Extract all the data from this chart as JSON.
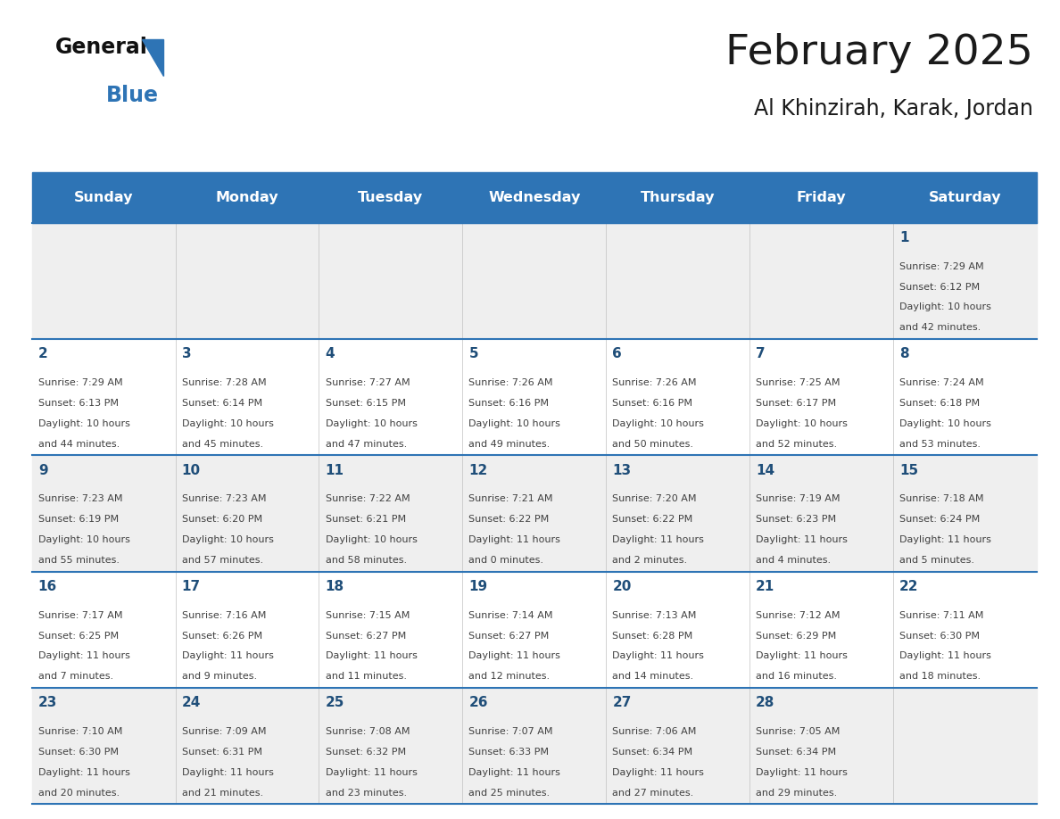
{
  "title": "February 2025",
  "subtitle": "Al Khinzirah, Karak, Jordan",
  "days_of_week": [
    "Sunday",
    "Monday",
    "Tuesday",
    "Wednesday",
    "Thursday",
    "Friday",
    "Saturday"
  ],
  "header_bg": "#2E74B5",
  "header_text": "#FFFFFF",
  "row_bg_odd": "#EFEFEF",
  "row_bg_even": "#FFFFFF",
  "separator_color": "#2E74B5",
  "day_num_color": "#1F4E79",
  "cell_text_color": "#404040",
  "calendar_data": [
    [
      null,
      null,
      null,
      null,
      null,
      null,
      {
        "day": "1",
        "sunrise": "7:29 AM",
        "sunset": "6:12 PM",
        "daylight_h": "10 hours",
        "daylight_m": "and 42 minutes."
      }
    ],
    [
      {
        "day": "2",
        "sunrise": "7:29 AM",
        "sunset": "6:13 PM",
        "daylight_h": "10 hours",
        "daylight_m": "and 44 minutes."
      },
      {
        "day": "3",
        "sunrise": "7:28 AM",
        "sunset": "6:14 PM",
        "daylight_h": "10 hours",
        "daylight_m": "and 45 minutes."
      },
      {
        "day": "4",
        "sunrise": "7:27 AM",
        "sunset": "6:15 PM",
        "daylight_h": "10 hours",
        "daylight_m": "and 47 minutes."
      },
      {
        "day": "5",
        "sunrise": "7:26 AM",
        "sunset": "6:16 PM",
        "daylight_h": "10 hours",
        "daylight_m": "and 49 minutes."
      },
      {
        "day": "6",
        "sunrise": "7:26 AM",
        "sunset": "6:16 PM",
        "daylight_h": "10 hours",
        "daylight_m": "and 50 minutes."
      },
      {
        "day": "7",
        "sunrise": "7:25 AM",
        "sunset": "6:17 PM",
        "daylight_h": "10 hours",
        "daylight_m": "and 52 minutes."
      },
      {
        "day": "8",
        "sunrise": "7:24 AM",
        "sunset": "6:18 PM",
        "daylight_h": "10 hours",
        "daylight_m": "and 53 minutes."
      }
    ],
    [
      {
        "day": "9",
        "sunrise": "7:23 AM",
        "sunset": "6:19 PM",
        "daylight_h": "10 hours",
        "daylight_m": "and 55 minutes."
      },
      {
        "day": "10",
        "sunrise": "7:23 AM",
        "sunset": "6:20 PM",
        "daylight_h": "10 hours",
        "daylight_m": "and 57 minutes."
      },
      {
        "day": "11",
        "sunrise": "7:22 AM",
        "sunset": "6:21 PM",
        "daylight_h": "10 hours",
        "daylight_m": "and 58 minutes."
      },
      {
        "day": "12",
        "sunrise": "7:21 AM",
        "sunset": "6:22 PM",
        "daylight_h": "11 hours",
        "daylight_m": "and 0 minutes."
      },
      {
        "day": "13",
        "sunrise": "7:20 AM",
        "sunset": "6:22 PM",
        "daylight_h": "11 hours",
        "daylight_m": "and 2 minutes."
      },
      {
        "day": "14",
        "sunrise": "7:19 AM",
        "sunset": "6:23 PM",
        "daylight_h": "11 hours",
        "daylight_m": "and 4 minutes."
      },
      {
        "day": "15",
        "sunrise": "7:18 AM",
        "sunset": "6:24 PM",
        "daylight_h": "11 hours",
        "daylight_m": "and 5 minutes."
      }
    ],
    [
      {
        "day": "16",
        "sunrise": "7:17 AM",
        "sunset": "6:25 PM",
        "daylight_h": "11 hours",
        "daylight_m": "and 7 minutes."
      },
      {
        "day": "17",
        "sunrise": "7:16 AM",
        "sunset": "6:26 PM",
        "daylight_h": "11 hours",
        "daylight_m": "and 9 minutes."
      },
      {
        "day": "18",
        "sunrise": "7:15 AM",
        "sunset": "6:27 PM",
        "daylight_h": "11 hours",
        "daylight_m": "and 11 minutes."
      },
      {
        "day": "19",
        "sunrise": "7:14 AM",
        "sunset": "6:27 PM",
        "daylight_h": "11 hours",
        "daylight_m": "and 12 minutes."
      },
      {
        "day": "20",
        "sunrise": "7:13 AM",
        "sunset": "6:28 PM",
        "daylight_h": "11 hours",
        "daylight_m": "and 14 minutes."
      },
      {
        "day": "21",
        "sunrise": "7:12 AM",
        "sunset": "6:29 PM",
        "daylight_h": "11 hours",
        "daylight_m": "and 16 minutes."
      },
      {
        "day": "22",
        "sunrise": "7:11 AM",
        "sunset": "6:30 PM",
        "daylight_h": "11 hours",
        "daylight_m": "and 18 minutes."
      }
    ],
    [
      {
        "day": "23",
        "sunrise": "7:10 AM",
        "sunset": "6:30 PM",
        "daylight_h": "11 hours",
        "daylight_m": "and 20 minutes."
      },
      {
        "day": "24",
        "sunrise": "7:09 AM",
        "sunset": "6:31 PM",
        "daylight_h": "11 hours",
        "daylight_m": "and 21 minutes."
      },
      {
        "day": "25",
        "sunrise": "7:08 AM",
        "sunset": "6:32 PM",
        "daylight_h": "11 hours",
        "daylight_m": "and 23 minutes."
      },
      {
        "day": "26",
        "sunrise": "7:07 AM",
        "sunset": "6:33 PM",
        "daylight_h": "11 hours",
        "daylight_m": "and 25 minutes."
      },
      {
        "day": "27",
        "sunrise": "7:06 AM",
        "sunset": "6:34 PM",
        "daylight_h": "11 hours",
        "daylight_m": "and 27 minutes."
      },
      {
        "day": "28",
        "sunrise": "7:05 AM",
        "sunset": "6:34 PM",
        "daylight_h": "11 hours",
        "daylight_m": "and 29 minutes."
      },
      null
    ]
  ],
  "fig_width": 11.88,
  "fig_height": 9.18,
  "dpi": 100
}
